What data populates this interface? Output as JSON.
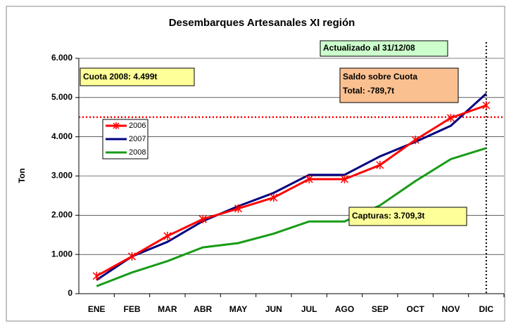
{
  "chart_data": {
    "type": "line",
    "title": "Desembarques Artesanales XI región",
    "y_label": "Ton",
    "categories": [
      "ENE",
      "FEB",
      "MAR",
      "ABR",
      "MAY",
      "JUN",
      "JUL",
      "AGO",
      "SEP",
      "OCT",
      "NOV",
      "DIC"
    ],
    "series": [
      {
        "name": "2006",
        "color": "#ff0000",
        "marker": "star",
        "values": [
          450,
          950,
          1470,
          1900,
          2170,
          2450,
          2920,
          2920,
          3280,
          3920,
          4480,
          4800
        ]
      },
      {
        "name": "2007",
        "color": "#000080",
        "values": [
          350,
          950,
          1320,
          1850,
          2230,
          2570,
          3030,
          3030,
          3500,
          3870,
          4280,
          5100
        ]
      },
      {
        "name": "2008",
        "color": "#169c16",
        "values": [
          190,
          540,
          830,
          1180,
          1290,
          1530,
          1840,
          1840,
          2250,
          2870,
          3430,
          3710
        ]
      }
    ],
    "ylim": [
      0,
      6000
    ],
    "yticks": [
      0,
      {
        "value": 1000,
        "label": "1.000"
      },
      {
        "value": 2000,
        "label": "2.000"
      },
      {
        "value": 3000,
        "label": "3.000"
      },
      {
        "value": 4000,
        "label": "4.000"
      },
      {
        "value": 5000,
        "label": "5.000"
      },
      {
        "value": 6000,
        "label": "6.000"
      }
    ],
    "grid": true,
    "quota_line": 4499,
    "updated_note": "Actualizado al 31/12/08",
    "quota_note": "Cuota 2008: 4.499t",
    "balance_note": [
      "Saldo sobre Cuota",
      "Total: -789,7t"
    ],
    "catch_note": "Capturas: 3.709,3t"
  }
}
